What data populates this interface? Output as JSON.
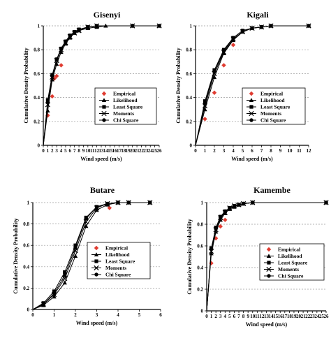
{
  "chart_data": [
    {
      "type": "line",
      "title": "Gisenyi",
      "xlabel": "Wind speed (m/s)",
      "ylabel": "Cumulative Density Probability",
      "xlim": [
        0,
        26
      ],
      "ylim": [
        0,
        1
      ],
      "xticks": [
        "0",
        "1",
        "2",
        "3",
        "4",
        "5",
        "6",
        "7",
        "8",
        "9",
        "10",
        "11",
        "12",
        "13",
        "14",
        "15",
        "16",
        "17",
        "18",
        "19",
        "20",
        "21",
        "22",
        "23",
        "24",
        "25",
        "26"
      ],
      "yticks": [
        "0",
        "0.2",
        "0.4",
        "0.6",
        "0.8",
        "1"
      ],
      "legend_position": "bottom-right",
      "series": [
        {
          "name": "Empirical",
          "marker": "diamond",
          "color": "#e03c31",
          "points": [
            [
              1,
              0.25
            ],
            [
              2,
              0.41
            ],
            [
              2.5,
              0.56
            ],
            [
              3,
              0.58
            ],
            [
              4,
              0.67
            ]
          ]
        },
        {
          "name": "Likelihood",
          "marker": "triangle",
          "color": "#000000",
          "points": [
            [
              0,
              0
            ],
            [
              1,
              0.29
            ],
            [
              2,
              0.55
            ],
            [
              3,
              0.68
            ],
            [
              4,
              0.78
            ],
            [
              5,
              0.85
            ],
            [
              6,
              0.9
            ],
            [
              7,
              0.94
            ],
            [
              8,
              0.96
            ],
            [
              10,
              0.98
            ],
            [
              12,
              0.99
            ],
            [
              14,
              1
            ],
            [
              20,
              1
            ],
            [
              26,
              1
            ]
          ]
        },
        {
          "name": "Least Square",
          "marker": "square",
          "color": "#000000",
          "points": [
            [
              0,
              0
            ],
            [
              1,
              0.38
            ],
            [
              2,
              0.59
            ],
            [
              3,
              0.72
            ],
            [
              4,
              0.81
            ],
            [
              5,
              0.87
            ],
            [
              6,
              0.92
            ],
            [
              7,
              0.95
            ],
            [
              8,
              0.97
            ],
            [
              10,
              0.99
            ],
            [
              12,
              1
            ],
            [
              20,
              1
            ],
            [
              26,
              1
            ]
          ]
        },
        {
          "name": "Moments",
          "marker": "cross",
          "color": "#000000",
          "points": [
            [
              0,
              0
            ],
            [
              1,
              0.34
            ],
            [
              2,
              0.57
            ],
            [
              3,
              0.71
            ],
            [
              4,
              0.8
            ],
            [
              5,
              0.86
            ],
            [
              6,
              0.91
            ],
            [
              7,
              0.94
            ],
            [
              8,
              0.96
            ],
            [
              10,
              0.99
            ],
            [
              12,
              1
            ],
            [
              20,
              1
            ],
            [
              26,
              1
            ]
          ]
        },
        {
          "name": "Chi Square",
          "marker": "circle",
          "color": "#000000",
          "points": [
            [
              0,
              0
            ],
            [
              1,
              0.36
            ],
            [
              2,
              0.58
            ],
            [
              3,
              0.72
            ],
            [
              4,
              0.81
            ],
            [
              5,
              0.87
            ],
            [
              6,
              0.92
            ],
            [
              7,
              0.95
            ],
            [
              8,
              0.97
            ],
            [
              10,
              0.99
            ],
            [
              12,
              1
            ],
            [
              20,
              1
            ],
            [
              26,
              1
            ]
          ]
        }
      ]
    },
    {
      "type": "line",
      "title": "Kigali",
      "xlabel": "Wind speed (m/s)",
      "ylabel": "Cumulative Density Probability",
      "xlim": [
        0,
        12
      ],
      "ylim": [
        0,
        1
      ],
      "xticks": [
        "0",
        "1",
        "2",
        "3",
        "4",
        "5",
        "6",
        "7",
        "8",
        "9",
        "10",
        "11",
        "12"
      ],
      "yticks": [
        "0",
        "0.2",
        "0.4",
        "0.6",
        "0.8",
        "1"
      ],
      "legend_position": "bottom-right",
      "series": [
        {
          "name": "Empirical",
          "marker": "diamond",
          "color": "#e03c31",
          "points": [
            [
              1,
              0.22
            ],
            [
              2,
              0.44
            ],
            [
              3,
              0.67
            ],
            [
              4,
              0.84
            ]
          ]
        },
        {
          "name": "Likelihood",
          "marker": "triangle",
          "color": "#000000",
          "points": [
            [
              0,
              0
            ],
            [
              1,
              0.3
            ],
            [
              2,
              0.57
            ],
            [
              3,
              0.77
            ],
            [
              4,
              0.88
            ],
            [
              5,
              0.95
            ],
            [
              6,
              0.98
            ],
            [
              7,
              0.99
            ],
            [
              8,
              1
            ],
            [
              12,
              1
            ]
          ]
        },
        {
          "name": "Least Square",
          "marker": "square",
          "color": "#000000",
          "points": [
            [
              0,
              0
            ],
            [
              1,
              0.37
            ],
            [
              2,
              0.63
            ],
            [
              3,
              0.8
            ],
            [
              4,
              0.9
            ],
            [
              5,
              0.96
            ],
            [
              6,
              0.98
            ],
            [
              7,
              0.99
            ],
            [
              8,
              1
            ],
            [
              12,
              1
            ]
          ]
        },
        {
          "name": "Moments",
          "marker": "cross",
          "color": "#000000",
          "points": [
            [
              0,
              0
            ],
            [
              1,
              0.33
            ],
            [
              2,
              0.6
            ],
            [
              3,
              0.78
            ],
            [
              4,
              0.89
            ],
            [
              5,
              0.95
            ],
            [
              6,
              0.98
            ],
            [
              7,
              0.99
            ],
            [
              8,
              1
            ],
            [
              12,
              1
            ]
          ]
        },
        {
          "name": "Chi Square",
          "marker": "circle",
          "color": "#000000",
          "points": [
            [
              0,
              0
            ],
            [
              1,
              0.35
            ],
            [
              2,
              0.62
            ],
            [
              3,
              0.79
            ],
            [
              4,
              0.9
            ],
            [
              5,
              0.96
            ],
            [
              6,
              0.98
            ],
            [
              7,
              0.99
            ],
            [
              8,
              1
            ],
            [
              12,
              1
            ]
          ]
        }
      ]
    },
    {
      "type": "line",
      "title": "Butare",
      "xlabel": "Wind speed (m/s)",
      "ylabel": "Cumulative Density Probability",
      "xlim": [
        0,
        6
      ],
      "ylim": [
        0,
        1
      ],
      "xticks": [
        "0",
        "1",
        "2",
        "3",
        "4",
        "5",
        "6"
      ],
      "yticks": [
        "0",
        "0.2",
        "0.4",
        "0.6",
        "0.8",
        "1"
      ],
      "legend_position": "bottom-right",
      "series": [
        {
          "name": "Empirical",
          "marker": "diamond",
          "color": "#e03c31",
          "points": [
            [
              3.6,
              0.95
            ]
          ]
        },
        {
          "name": "Likelihood",
          "marker": "triangle",
          "color": "#000000",
          "points": [
            [
              0,
              0
            ],
            [
              0.5,
              0.04
            ],
            [
              1,
              0.12
            ],
            [
              1.5,
              0.25
            ],
            [
              2,
              0.5
            ],
            [
              2.5,
              0.78
            ],
            [
              3,
              0.93
            ],
            [
              3.5,
              0.98
            ],
            [
              4,
              1
            ],
            [
              4.5,
              1
            ],
            [
              5.5,
              1
            ]
          ]
        },
        {
          "name": "Least Square",
          "marker": "square",
          "color": "#000000",
          "points": [
            [
              0,
              0
            ],
            [
              0.5,
              0.06
            ],
            [
              1,
              0.17
            ],
            [
              1.5,
              0.35
            ],
            [
              2,
              0.6
            ],
            [
              2.5,
              0.86
            ],
            [
              3,
              0.96
            ],
            [
              3.5,
              0.99
            ],
            [
              4,
              1
            ],
            [
              4.5,
              1
            ],
            [
              5.5,
              1
            ]
          ]
        },
        {
          "name": "Moments",
          "marker": "cross",
          "color": "#000000",
          "points": [
            [
              0,
              0
            ],
            [
              0.5,
              0.05
            ],
            [
              1,
              0.14
            ],
            [
              1.5,
              0.29
            ],
            [
              2,
              0.55
            ],
            [
              2.5,
              0.82
            ],
            [
              3,
              0.95
            ],
            [
              3.5,
              0.99
            ],
            [
              4,
              1
            ],
            [
              4.5,
              1
            ],
            [
              5.5,
              1
            ]
          ]
        },
        {
          "name": "Chi Square",
          "marker": "circle",
          "color": "#000000",
          "points": [
            [
              0,
              0
            ],
            [
              0.5,
              0.05
            ],
            [
              1,
              0.15
            ],
            [
              1.5,
              0.32
            ],
            [
              2,
              0.58
            ],
            [
              2.5,
              0.85
            ],
            [
              3,
              0.96
            ],
            [
              3.5,
              0.99
            ],
            [
              4,
              1
            ],
            [
              4.5,
              1
            ],
            [
              5.5,
              1
            ]
          ]
        }
      ]
    },
    {
      "type": "line",
      "title": "Kamembe",
      "xlabel": "Wind speed (m/s)",
      "ylabel": "Cumulative Density Probability",
      "xlim": [
        0,
        26
      ],
      "ylim": [
        0,
        1
      ],
      "xticks": [
        "0",
        "1",
        "2",
        "3",
        "4",
        "5",
        "6",
        "7",
        "8",
        "9",
        "10",
        "11",
        "12",
        "13",
        "14",
        "15",
        "16",
        "17",
        "18",
        "19",
        "20",
        "21",
        "22",
        "23",
        "24",
        "25",
        "26"
      ],
      "yticks": [
        "0",
        "0.2",
        "0.4",
        "0.6",
        "0.8",
        "1"
      ],
      "legend_position": "bottom-right",
      "series": [
        {
          "name": "Empirical",
          "marker": "diamond",
          "color": "#e03c31",
          "points": [
            [
              1,
              0.44
            ],
            [
              2,
              0.67
            ],
            [
              3,
              0.78
            ],
            [
              4,
              0.84
            ]
          ]
        },
        {
          "name": "Likelihood",
          "marker": "triangle",
          "color": "#000000",
          "points": [
            [
              0,
              0
            ],
            [
              1,
              0.53
            ],
            [
              2,
              0.73
            ],
            [
              3,
              0.84
            ],
            [
              4,
              0.9
            ],
            [
              5,
              0.94
            ],
            [
              6,
              0.96
            ],
            [
              7,
              0.98
            ],
            [
              8,
              0.99
            ],
            [
              10,
              1
            ],
            [
              26,
              1
            ]
          ]
        },
        {
          "name": "Least Square",
          "marker": "square",
          "color": "#000000",
          "points": [
            [
              0,
              0
            ],
            [
              1,
              0.58
            ],
            [
              2,
              0.77
            ],
            [
              3,
              0.87
            ],
            [
              4,
              0.92
            ],
            [
              5,
              0.95
            ],
            [
              6,
              0.97
            ],
            [
              7,
              0.98
            ],
            [
              8,
              0.99
            ],
            [
              10,
              1
            ],
            [
              26,
              1
            ]
          ]
        },
        {
          "name": "Moments",
          "marker": "cross",
          "color": "#000000",
          "points": [
            [
              0,
              0
            ],
            [
              1,
              0.55
            ],
            [
              2,
              0.75
            ],
            [
              3,
              0.86
            ],
            [
              4,
              0.91
            ],
            [
              5,
              0.95
            ],
            [
              6,
              0.97
            ],
            [
              7,
              0.98
            ],
            [
              8,
              0.99
            ],
            [
              10,
              1
            ],
            [
              26,
              1
            ]
          ]
        },
        {
          "name": "Chi Square",
          "marker": "circle",
          "color": "#000000",
          "points": [
            [
              0,
              0
            ],
            [
              1,
              0.57
            ],
            [
              2,
              0.76
            ],
            [
              3,
              0.86
            ],
            [
              4,
              0.92
            ],
            [
              5,
              0.95
            ],
            [
              6,
              0.97
            ],
            [
              7,
              0.98
            ],
            [
              8,
              0.99
            ],
            [
              10,
              1
            ],
            [
              26,
              1
            ]
          ]
        }
      ]
    }
  ]
}
